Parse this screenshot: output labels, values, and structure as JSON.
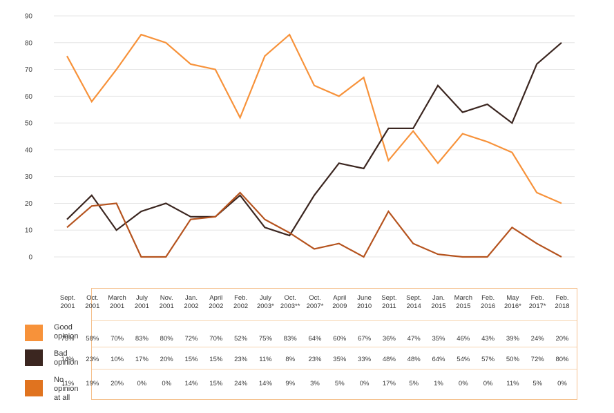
{
  "chart_data": {
    "type": "line",
    "title": "",
    "xlabel": "",
    "ylabel": "",
    "ylim": [
      0,
      90
    ],
    "yticks": [
      0,
      10,
      20,
      30,
      40,
      50,
      60,
      70,
      80,
      90
    ],
    "grid": true,
    "legend_position": "bottom-left",
    "categories": [
      "Sept.\n2001",
      "Oct.\n2001",
      "March\n2001",
      "July\n2001",
      "Nov.\n2001",
      "Jan.\n2002",
      "April\n2002",
      "Feb.\n2002",
      "July\n2003*",
      "Oct.\n2003**",
      "Oct.\n2007*",
      "April\n2009",
      "June\n2010",
      "Sept.\n2011",
      "Sept.\n2014",
      "Jan.\n2015",
      "March\n2015",
      "Feb.\n2016",
      "May\n2016*",
      "Feb.\n2017*",
      "Feb.\n2018"
    ],
    "series": [
      {
        "name": "Good opinion",
        "color": "#f7923a",
        "values": [
          75,
          58,
          70,
          83,
          80,
          72,
          70,
          52,
          75,
          83,
          64,
          60,
          67,
          36,
          47,
          35,
          46,
          43,
          39,
          24,
          20
        ],
        "labels": [
          "75%",
          "58%",
          "70%",
          "83%",
          "80%",
          "72%",
          "70%",
          "52%",
          "75%",
          "83%",
          "64%",
          "60%",
          "67%",
          "36%",
          "47%",
          "35%",
          "46%",
          "43%",
          "39%",
          "24%",
          "20%"
        ]
      },
      {
        "name": "Bad opinion",
        "color": "#3b2620",
        "values": [
          14,
          23,
          10,
          17,
          20,
          15,
          15,
          23,
          11,
          8,
          23,
          35,
          33,
          48,
          48,
          64,
          54,
          57,
          50,
          72,
          80
        ],
        "labels": [
          "14%",
          "23%",
          "10%",
          "17%",
          "20%",
          "15%",
          "15%",
          "23%",
          "11%",
          "8%",
          "23%",
          "35%",
          "33%",
          "48%",
          "48%",
          "64%",
          "54%",
          "57%",
          "50%",
          "72%",
          "80%"
        ]
      },
      {
        "name": "No opinion at all",
        "color": "#b5531e",
        "values": [
          11,
          19,
          20,
          0,
          0,
          14,
          15,
          24,
          14,
          9,
          3,
          5,
          0,
          17,
          5,
          1,
          0,
          0,
          11,
          5,
          0
        ],
        "labels": [
          "11%",
          "19%",
          "20%",
          "0%",
          "0%",
          "14%",
          "15%",
          "24%",
          "14%",
          "9%",
          "3%",
          "5%",
          "0%",
          "17%",
          "5%",
          "1%",
          "0%",
          "0%",
          "11%",
          "5%",
          "0%"
        ]
      }
    ],
    "plotted_series": [
      {
        "name": "Good opinion",
        "color": "#f7923a",
        "values": [
          75,
          58,
          70,
          83,
          80,
          72,
          70,
          52,
          75,
          83,
          64,
          60,
          67,
          36,
          47,
          35,
          46,
          43,
          39,
          24,
          20
        ]
      },
      {
        "name": "Bad opinion",
        "color": "#3b2620",
        "values": [
          14,
          23,
          10,
          17,
          20,
          15,
          15,
          23,
          11,
          8,
          23,
          35,
          33,
          48,
          48,
          64,
          54,
          57,
          50,
          72,
          80
        ]
      },
      {
        "name": "No opinion at all",
        "color": "#b5531e",
        "values": [
          11,
          19,
          20,
          0,
          0,
          14,
          15,
          24,
          14,
          9,
          3,
          5,
          0,
          17,
          5,
          1,
          0,
          0,
          11,
          5,
          0
        ]
      }
    ]
  },
  "legend": [
    {
      "label": "Good\nopinion",
      "color": "#f7923a"
    },
    {
      "label": "Bad\nopinion",
      "color": "#3b2620"
    },
    {
      "label": "No\nopinion\nat all",
      "color": "#e0731f"
    }
  ],
  "colors": {
    "grid": "#e6e6e6",
    "table_border": "#f5c18e",
    "axis_text": "#444444"
  }
}
